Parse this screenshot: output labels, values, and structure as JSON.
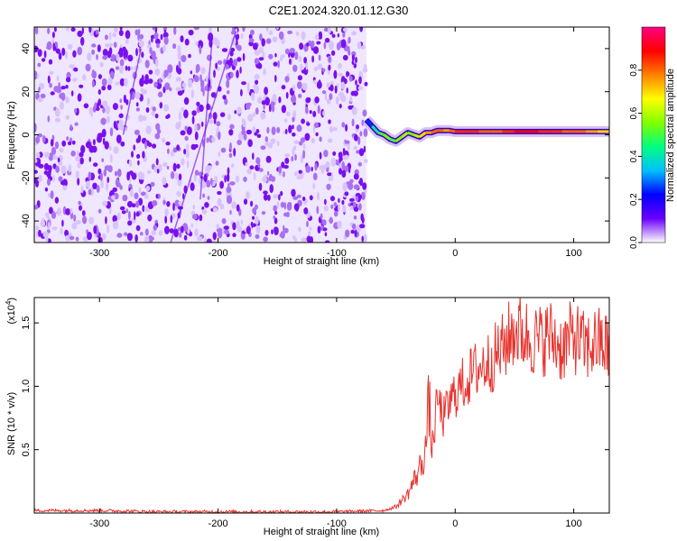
{
  "title": "C2E1.2024.320.01.12.G30",
  "chart_data": [
    {
      "type": "heatmap",
      "xlabel": "Height of straight line (km)",
      "ylabel": "Frequency (Hz)",
      "xlim": [
        -355,
        130
      ],
      "ylim": [
        -50,
        50
      ],
      "xticks": [
        -300,
        -200,
        -100,
        0,
        100
      ],
      "yticks": [
        -40,
        -20,
        0,
        20,
        40
      ],
      "noise_region_x": [
        -355,
        -75
      ],
      "signal_trace": {
        "x": [
          -75,
          -70,
          -65,
          -60,
          -55,
          -50,
          -45,
          -40,
          -35,
          -30,
          -25,
          -20,
          -15,
          -10,
          -5,
          0,
          10,
          20,
          30,
          40,
          50,
          60,
          70,
          80,
          90,
          100,
          110,
          120,
          130
        ],
        "frequency": [
          7,
          4,
          1,
          0,
          -2,
          -3,
          -1,
          1,
          0,
          -1,
          1,
          1,
          2,
          2,
          2,
          1.5,
          1.5,
          1.5,
          1.5,
          1.5,
          1.5,
          1.5,
          1.5,
          1.5,
          1.5,
          1.5,
          1.5,
          1.5,
          1.5
        ],
        "amplitude": [
          0.25,
          0.4,
          0.5,
          0.55,
          0.5,
          0.55,
          0.6,
          0.55,
          0.6,
          0.7,
          0.75,
          0.8,
          0.8,
          0.75,
          0.8,
          0.85,
          0.85,
          0.8,
          0.8,
          0.85,
          0.9,
          0.9,
          0.85,
          0.85,
          0.8,
          0.8,
          0.75,
          0.7,
          0.55
        ]
      },
      "colorbar": {
        "label": "Normalized spectral amplitude",
        "range": [
          0,
          1
        ],
        "ticks": [
          "0.0",
          "0.2",
          "0.4",
          "0.6",
          "0.8"
        ],
        "tick_values": [
          0,
          0.2,
          0.4,
          0.6,
          0.8
        ],
        "colors": [
          "#ffffff",
          "#6a00ff",
          "#0000ff",
          "#00c0ff",
          "#00ff80",
          "#80ff00",
          "#ffff00",
          "#ff8000",
          "#ff0000",
          "#ff0080"
        ]
      }
    },
    {
      "type": "line",
      "xlabel": "Height of straight line (km)",
      "ylabel": "SNR (10 * v/v)",
      "multiplier": "(x10",
      "multiplier_exp": "4",
      "multiplier_close": ")",
      "xlim": [
        -355,
        130
      ],
      "ylim": [
        0,
        1.7
      ],
      "xticks": [
        -300,
        -200,
        -100,
        0,
        100
      ],
      "yticks": [
        "0.5",
        "1.0",
        "1.5"
      ],
      "ytick_values": [
        0.5,
        1.0,
        1.5
      ],
      "color": "#e8332e",
      "series": [
        {
          "x": [
            -355,
            -300,
            -250,
            -200,
            -150,
            -100,
            -60,
            -50,
            -45,
            -40,
            -35,
            -30,
            -25,
            -22,
            -20,
            -18,
            -15,
            -10,
            -5,
            0,
            10,
            20,
            30,
            40,
            50,
            60,
            70,
            80,
            90,
            100,
            110,
            120,
            130
          ],
          "values": [
            0.02,
            0.02,
            0.01,
            0.01,
            0.01,
            0.01,
            0.02,
            0.05,
            0.1,
            0.15,
            0.25,
            0.35,
            0.5,
            0.9,
            0.5,
            0.6,
            0.9,
            0.75,
            0.85,
            0.95,
            1.05,
            1.15,
            1.2,
            1.3,
            1.45,
            1.4,
            1.35,
            1.4,
            1.3,
            1.4,
            1.3,
            1.35,
            1.3
          ]
        }
      ]
    }
  ]
}
